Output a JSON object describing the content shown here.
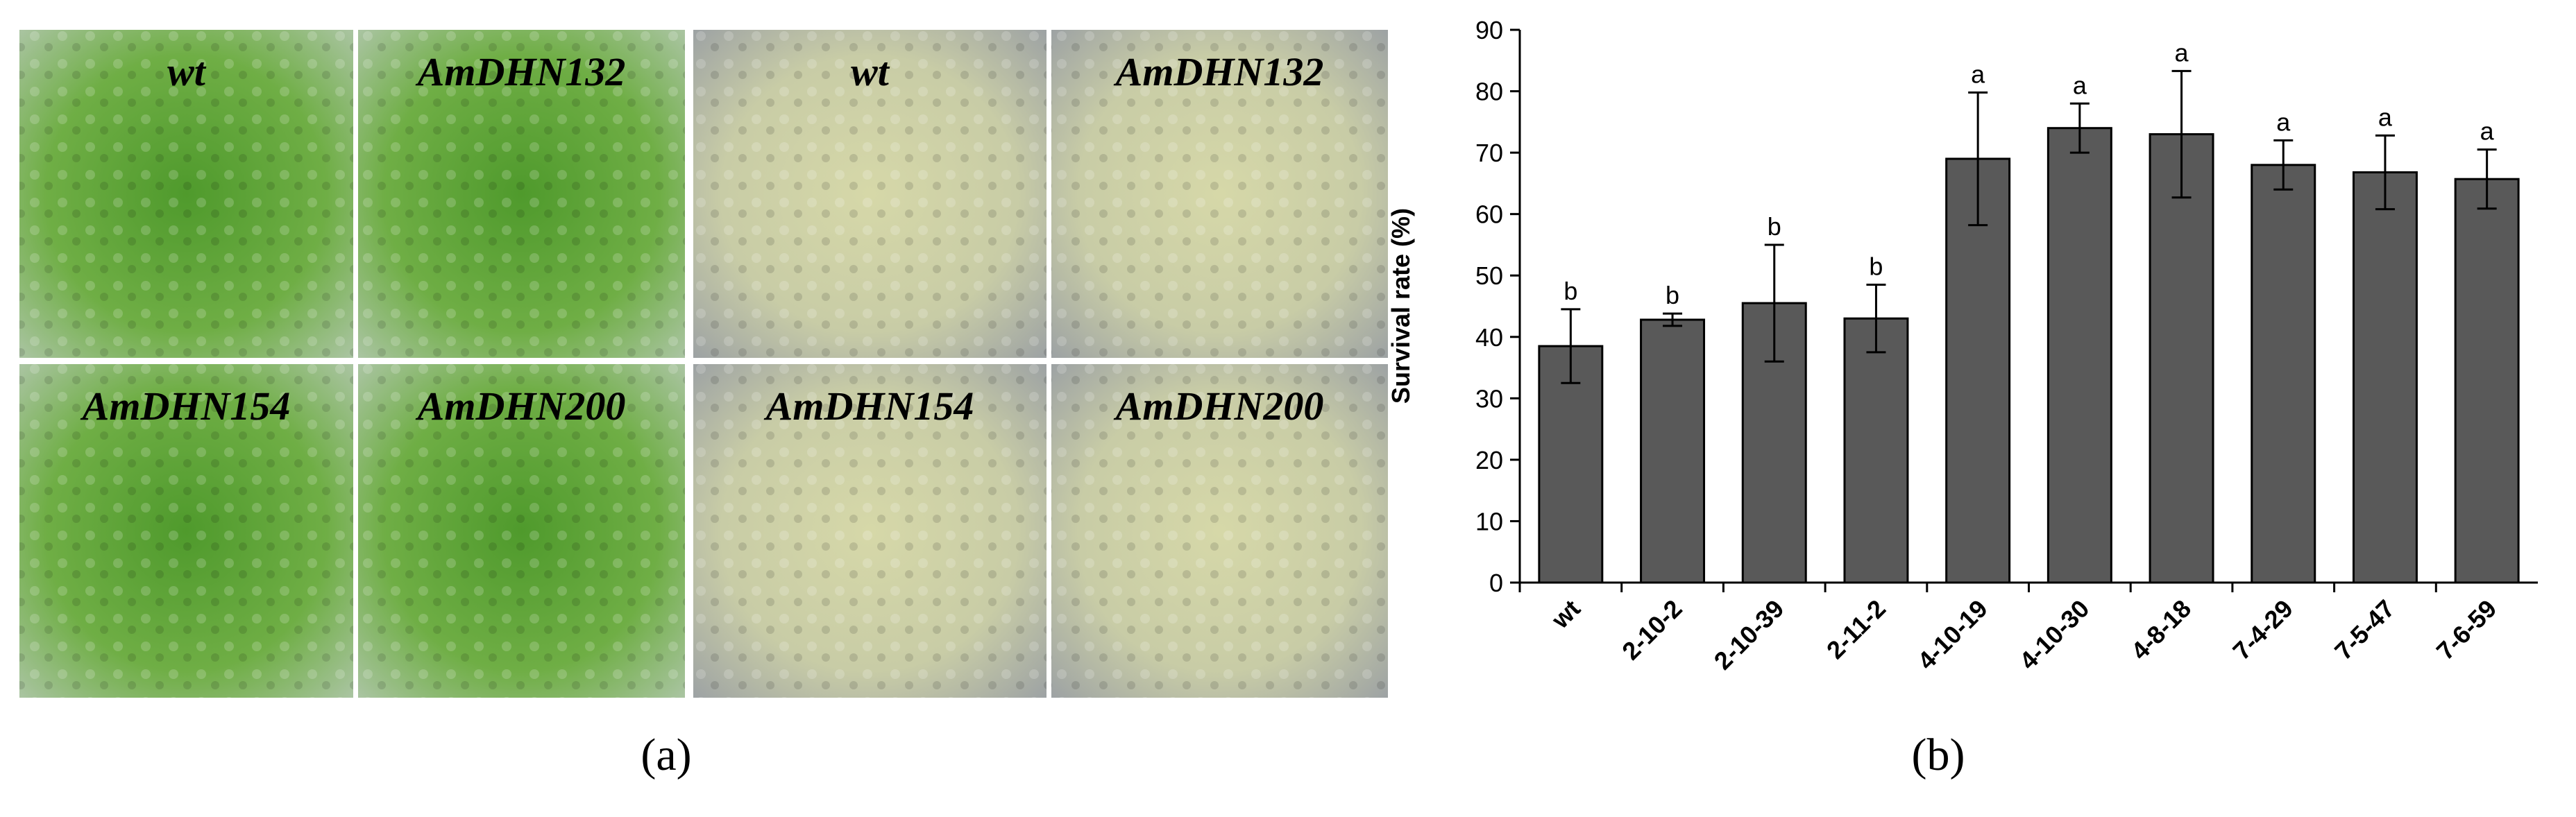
{
  "panel_a": {
    "caption": "(a)",
    "tiles": [
      "wt",
      "AmDHN132",
      "wt",
      "AmDHN132",
      "AmDHN154",
      "AmDHN200",
      "AmDHN154",
      "AmDHN200"
    ]
  },
  "panel_b_caption": "(b)",
  "chart_data": {
    "type": "bar",
    "ylabel": "Survival rate (%)",
    "categories": [
      "wt",
      "2-10-2",
      "2-10-39",
      "2-11-2",
      "4-10-19",
      "4-10-30",
      "4-8-18",
      "7-4-29",
      "7-5-47",
      "7-6-59"
    ],
    "values": [
      38.5,
      42.8,
      45.5,
      43,
      69,
      74,
      73,
      68,
      66.8,
      65.7
    ],
    "errors": [
      6,
      1,
      9.5,
      5.5,
      10.8,
      4,
      10.3,
      4,
      6,
      4.8
    ],
    "letters": [
      "b",
      "b",
      "b",
      "b",
      "a",
      "a",
      "a",
      "a",
      "a",
      "a"
    ],
    "color": "#595959",
    "ylim": [
      0,
      90
    ],
    "yticks": [
      0,
      10,
      20,
      30,
      40,
      50,
      60,
      70,
      80,
      90
    ]
  }
}
